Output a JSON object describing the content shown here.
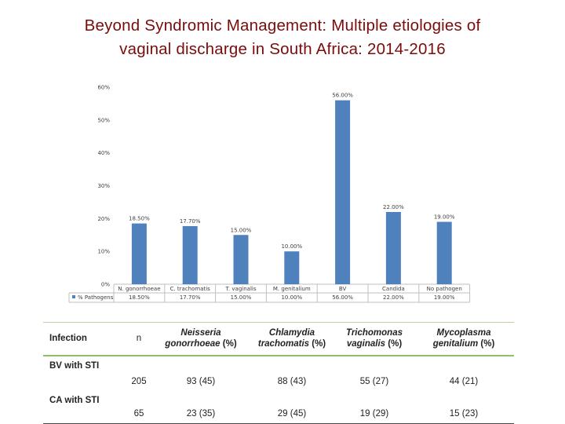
{
  "title": {
    "line1": "Beyond Syndromic Management: Multiple etiologies of",
    "line2": "vaginal discharge in South Africa: 2014-2016"
  },
  "colors": {
    "title": "#7a0c0c",
    "bar": "#4f81bd",
    "table_rule": "#8fbf6c"
  },
  "chart_data": {
    "type": "bar",
    "title": "",
    "xlabel": "",
    "ylabel": "",
    "ylim": [
      0,
      60
    ],
    "y_ticks": [
      "0%",
      "10%",
      "20%",
      "30%",
      "40%",
      "50%",
      "60%"
    ],
    "categories": [
      "N. gonorrhoeae",
      "C. trachomatis",
      "T. vaginalis",
      "M. genitalium",
      "BV",
      "Candida",
      "No pathogen"
    ],
    "series": [
      {
        "name": "% Pathogens",
        "values": [
          18.5,
          17.7,
          15.0,
          10.0,
          56.0,
          22.0,
          19.0
        ],
        "labels": [
          "18.50%",
          "17.70%",
          "15.00%",
          "10.00%",
          "56.00%",
          "22.00%",
          "19.00%"
        ]
      }
    ],
    "legend": "data-table-below-axis",
    "grid": false
  },
  "table": {
    "headers": {
      "infection": "Infection",
      "n": "n",
      "ng_name": "Neisseria",
      "ng_rest1": "gonorrhoeae",
      "ng_rest2": "(%)",
      "ct_name": "Chlamydia",
      "ct_rest1": "trachomatis",
      "ct_rest2": "(%)",
      "tv_name": "Trichomonas",
      "tv_rest1": "vaginalis",
      "tv_rest2": "(%)",
      "mg_name": "Mycoplasma",
      "mg_rest1": "genitalium",
      "mg_rest2": "(%)"
    },
    "rows": [
      {
        "label": "BV with STI",
        "n": "205",
        "ng": "93 (45)",
        "ct": "88 (43)",
        "tv": "55 (27)",
        "mg": "44 (21)"
      },
      {
        "label": "CA with STI",
        "n": "65",
        "ng": "23 (35)",
        "ct": "29 (45)",
        "tv": "19 (29)",
        "mg": "15 (23)"
      }
    ]
  }
}
